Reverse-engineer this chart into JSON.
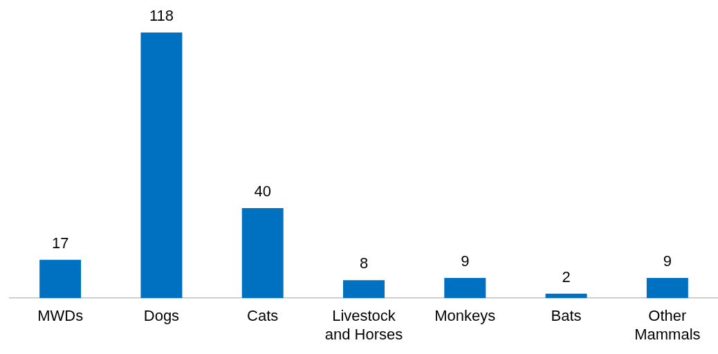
{
  "chart_data": {
    "type": "bar",
    "categories": [
      "MWDs",
      "Dogs",
      "Cats",
      "Livestock and Horses",
      "Monkeys",
      "Bats",
      "Other Mammals"
    ],
    "values": [
      17,
      118,
      40,
      8,
      9,
      2,
      9
    ],
    "color": "#0070c0",
    "data_labels": true
  }
}
